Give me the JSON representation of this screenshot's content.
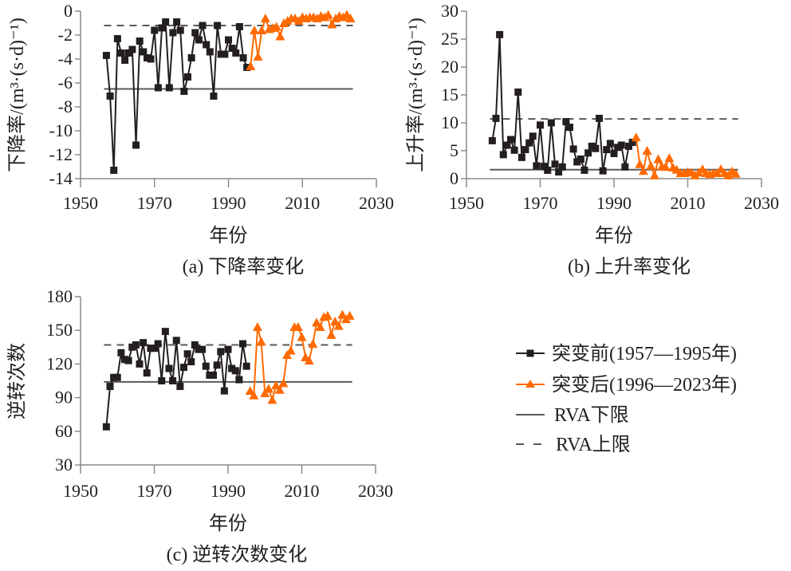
{
  "colors": {
    "before": "#231f20",
    "after": "#ff6a00",
    "rva": "#595959",
    "axis": "#8c8c8c"
  },
  "legend": {
    "before": "突变前(1957—1995年)",
    "after": "突变后(1996—2023年)",
    "rva_lower": "RVA下限",
    "rva_upper": "RVA上限"
  },
  "chart_data": [
    {
      "id": "a",
      "type": "line",
      "title": "(a) 下降率变化",
      "xlabel": "年份",
      "ylabel": "下降率/(m³·(s·d)⁻¹)",
      "xlim": [
        1950,
        2030
      ],
      "ylim": [
        -14,
        0
      ],
      "xticks": [
        1950,
        1970,
        1990,
        2010,
        2030
      ],
      "yticks": [
        0,
        -2,
        -4,
        -6,
        -8,
        -10,
        -12,
        -14
      ],
      "ytick_labels": [
        "0",
        "-2",
        "-4",
        "-6",
        "-8",
        "-10",
        "-12",
        "-14"
      ],
      "rva_lower": -6.5,
      "rva_upper": -1.2,
      "series": [
        {
          "name": "突变前(1957—1995年)",
          "marker": "square",
          "x": [
            1957,
            1958,
            1959,
            1960,
            1961,
            1962,
            1963,
            1964,
            1965,
            1966,
            1967,
            1968,
            1969,
            1970,
            1971,
            1972,
            1973,
            1974,
            1975,
            1976,
            1977,
            1978,
            1979,
            1980,
            1981,
            1982,
            1983,
            1984,
            1985,
            1986,
            1987,
            1988,
            1989,
            1990,
            1991,
            1992,
            1993,
            1994,
            1995
          ],
          "y": [
            -3.7,
            -7.1,
            -13.3,
            -2.3,
            -3.5,
            -4.1,
            -3.5,
            -3.2,
            -11.2,
            -2.5,
            -3.4,
            -3.9,
            -4.0,
            -1.6,
            -6.4,
            -1.4,
            -0.9,
            -6.4,
            -1.8,
            -0.9,
            -1.6,
            -6.7,
            -5.5,
            -3.9,
            -1.8,
            -2.4,
            -1.2,
            -2.8,
            -3.4,
            -7.1,
            -1.2,
            -3.6,
            -3.6,
            -2.4,
            -3.1,
            -3.5,
            -1.3,
            -3.9,
            -4.7
          ]
        },
        {
          "name": "突变后(1996—2023年)",
          "marker": "triangle",
          "x": [
            1996,
            1997,
            1998,
            1999,
            2000,
            2001,
            2002,
            2003,
            2004,
            2005,
            2006,
            2007,
            2008,
            2009,
            2010,
            2011,
            2012,
            2013,
            2014,
            2015,
            2016,
            2017,
            2018,
            2019,
            2020,
            2021,
            2022,
            2023
          ],
          "y": [
            -4.6,
            -1.6,
            -3.8,
            -1.6,
            -0.6,
            -1.5,
            -1.4,
            -1.3,
            -2.1,
            -1.0,
            -0.8,
            -0.6,
            -0.6,
            -0.8,
            -0.5,
            -0.6,
            -0.5,
            -0.5,
            -0.6,
            -0.4,
            -0.5,
            -0.3,
            -1.1,
            -0.6,
            -0.4,
            -0.5,
            -0.3,
            -0.6
          ]
        }
      ]
    },
    {
      "id": "b",
      "type": "line",
      "title": "(b) 上升率变化",
      "xlabel": "年份",
      "ylabel": "上升率/(m³·(s·d)⁻¹)",
      "xlim": [
        1950,
        2030
      ],
      "ylim": [
        0,
        30
      ],
      "xticks": [
        1950,
        1970,
        1990,
        2010,
        2030
      ],
      "yticks": [
        0,
        5,
        10,
        15,
        20,
        25,
        30
      ],
      "ytick_labels": [
        "0",
        "5",
        "10",
        "15",
        "20",
        "25",
        "30"
      ],
      "rva_lower": 1.6,
      "rva_upper": 10.7,
      "series": [
        {
          "name": "突变前(1957—1995年)",
          "marker": "square",
          "x": [
            1957,
            1958,
            1959,
            1960,
            1961,
            1962,
            1963,
            1964,
            1965,
            1966,
            1967,
            1968,
            1969,
            1970,
            1971,
            1972,
            1973,
            1974,
            1975,
            1976,
            1977,
            1978,
            1979,
            1980,
            1981,
            1982,
            1983,
            1984,
            1985,
            1986,
            1987,
            1988,
            1989,
            1990,
            1991,
            1992,
            1993,
            1994,
            1995
          ],
          "y": [
            6.8,
            10.8,
            25.8,
            4.3,
            6.0,
            7.0,
            5.1,
            15.5,
            3.8,
            5.2,
            6.4,
            7.6,
            2.3,
            9.6,
            2.2,
            1.5,
            10.0,
            2.6,
            1.2,
            2.1,
            10.2,
            9.2,
            5.3,
            3.0,
            3.5,
            1.5,
            4.6,
            5.8,
            5.4,
            10.8,
            1.4,
            5.2,
            6.3,
            4.5,
            5.6,
            6.0,
            2.1,
            5.8,
            6.5
          ]
        },
        {
          "name": "突变后(1996—2023年)",
          "marker": "triangle",
          "x": [
            1996,
            1997,
            1998,
            1999,
            2000,
            2001,
            2002,
            2003,
            2004,
            2005,
            2006,
            2007,
            2008,
            2009,
            2010,
            2011,
            2012,
            2013,
            2014,
            2015,
            2016,
            2017,
            2018,
            2019,
            2020,
            2021,
            2022,
            2023
          ],
          "y": [
            7.4,
            2.6,
            1.4,
            5.0,
            2.3,
            0.6,
            3.5,
            2.2,
            2.1,
            3.7,
            2.0,
            1.6,
            1.0,
            1.0,
            1.2,
            1.1,
            0.6,
            1.1,
            1.7,
            1.0,
            0.8,
            1.0,
            1.0,
            1.7,
            1.0,
            0.6,
            1.3,
            0.9
          ]
        }
      ]
    },
    {
      "id": "c",
      "type": "line",
      "title": "(c) 逆转次数变化",
      "xlabel": "年份",
      "ylabel": "逆转次数",
      "xlim": [
        1950,
        2030
      ],
      "ylim": [
        30,
        180
      ],
      "xticks": [
        1950,
        1970,
        1990,
        2010,
        2030
      ],
      "yticks": [
        30,
        60,
        90,
        120,
        150,
        180
      ],
      "ytick_labels": [
        "30",
        "60",
        "90",
        "120",
        "150",
        "180"
      ],
      "rva_lower": 104,
      "rva_upper": 137,
      "series": [
        {
          "name": "突变前(1957—1995年)",
          "marker": "square",
          "x": [
            1957,
            1958,
            1959,
            1960,
            1961,
            1962,
            1963,
            1964,
            1965,
            1966,
            1967,
            1968,
            1969,
            1970,
            1971,
            1972,
            1973,
            1974,
            1975,
            1976,
            1977,
            1978,
            1979,
            1980,
            1981,
            1982,
            1983,
            1984,
            1985,
            1986,
            1987,
            1988,
            1989,
            1990,
            1991,
            1992,
            1993,
            1994,
            1995
          ],
          "y": [
            64,
            100,
            108,
            108,
            130,
            124,
            123,
            135,
            137,
            120,
            139,
            112,
            134,
            134,
            138,
            105,
            149,
            116,
            105,
            141,
            100,
            117,
            129,
            122,
            137,
            133,
            133,
            118,
            110,
            110,
            119,
            131,
            96,
            133,
            116,
            114,
            106,
            138,
            118
          ]
        },
        {
          "name": "突变后(1996—2023年)",
          "marker": "triangle",
          "x": [
            1996,
            1997,
            1998,
            1999,
            2000,
            2001,
            2002,
            2003,
            2004,
            2005,
            2006,
            2007,
            2008,
            2009,
            2010,
            2011,
            2012,
            2013,
            2014,
            2015,
            2016,
            2017,
            2018,
            2019,
            2020,
            2021,
            2022,
            2023
          ],
          "y": [
            96,
            92,
            153,
            140,
            94,
            98,
            88,
            101,
            97,
            103,
            128,
            132,
            153,
            153,
            144,
            126,
            123,
            138,
            157,
            153,
            162,
            163,
            146,
            158,
            154,
            164,
            160,
            163
          ]
        }
      ]
    }
  ]
}
